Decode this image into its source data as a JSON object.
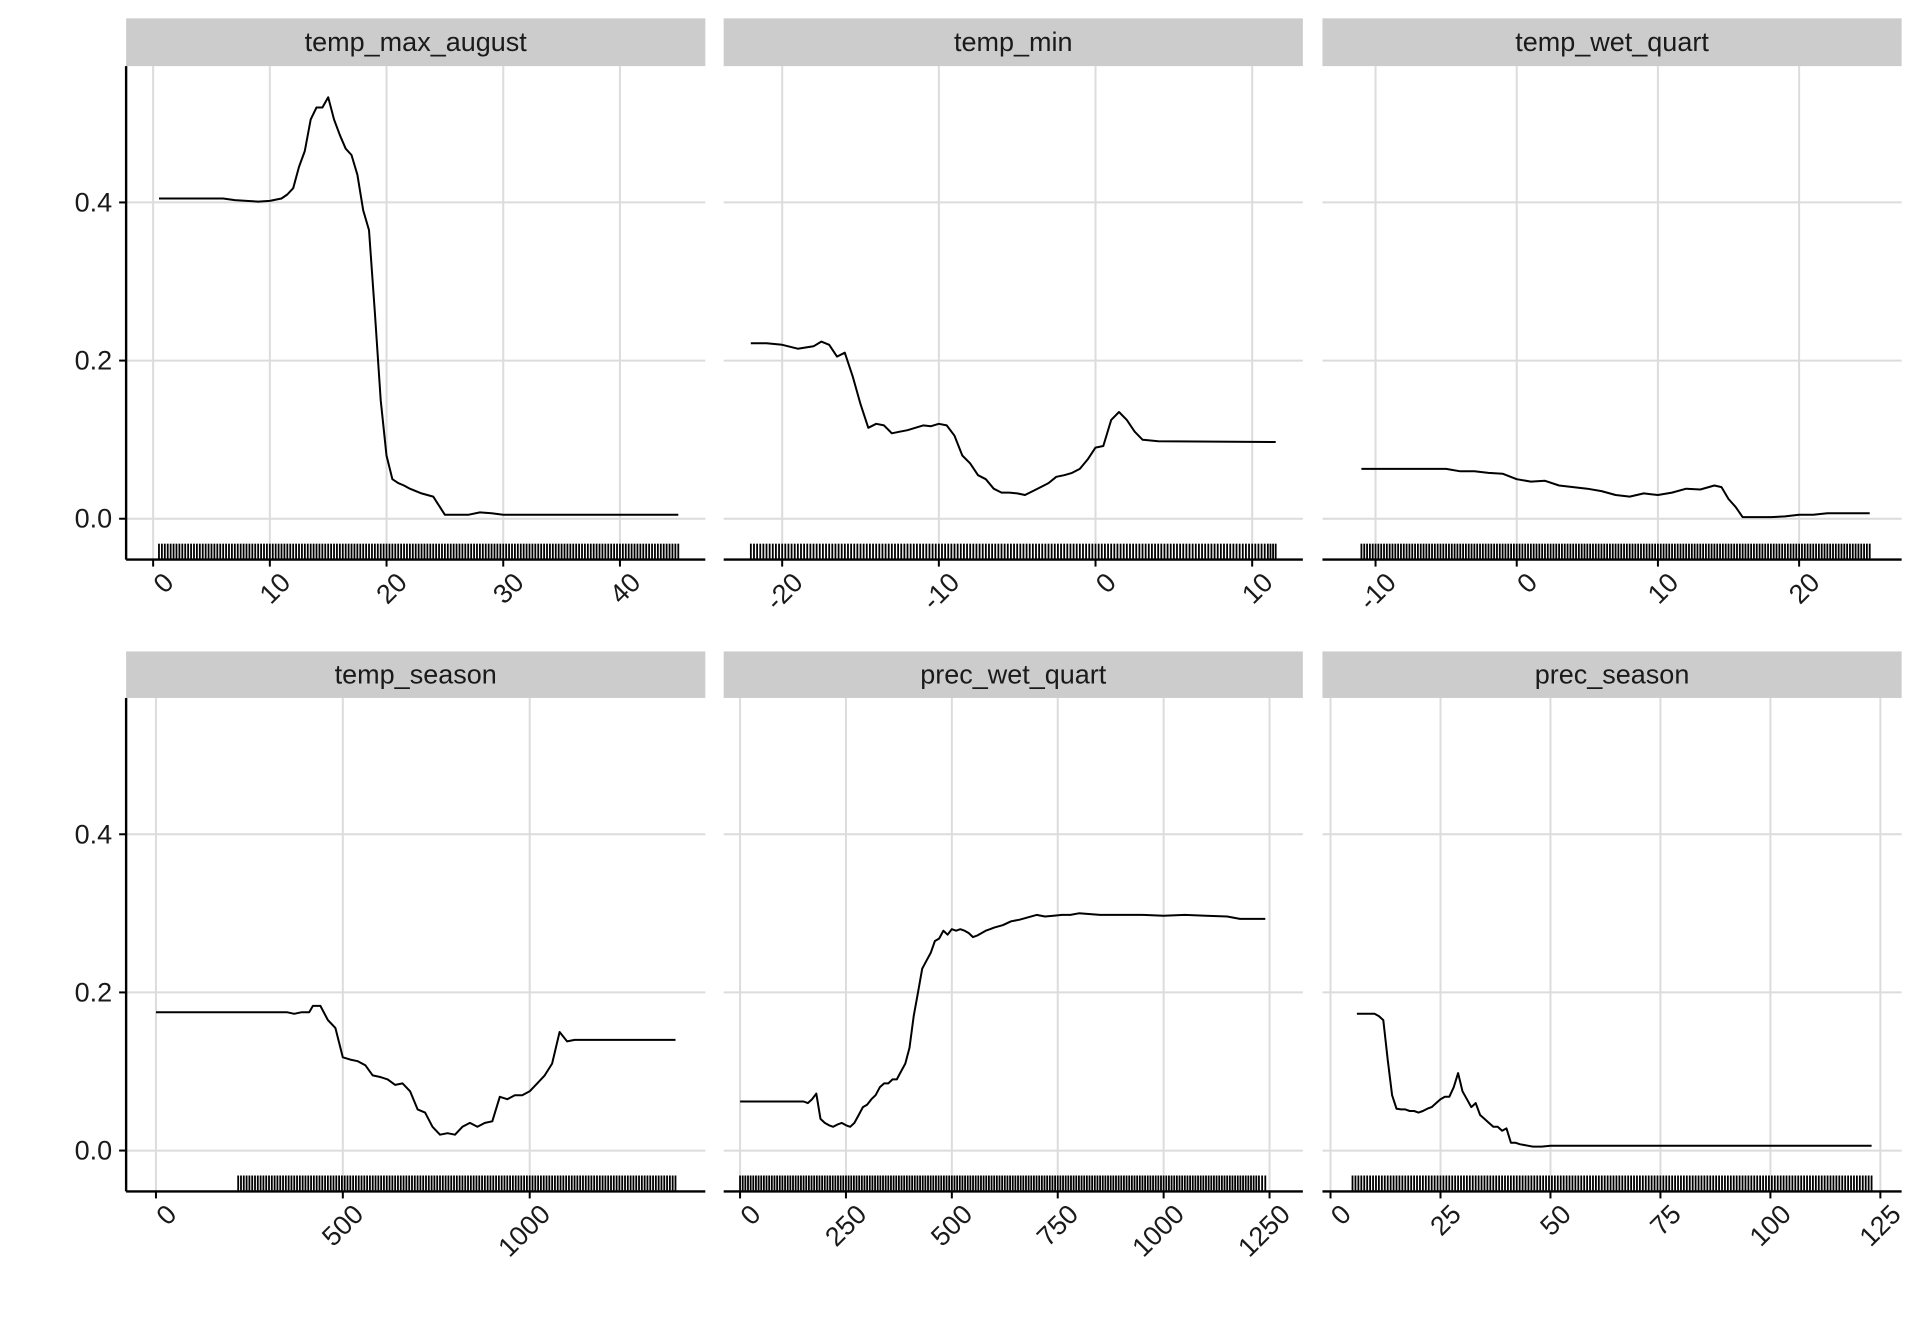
{
  "chart_data": [
    {
      "type": "line",
      "title": "temp_max_august",
      "xlim": [
        -2,
        47
      ],
      "ylim": [
        -0.03,
        0.56
      ],
      "xticks": [
        "0",
        "10",
        "20",
        "30",
        "40"
      ],
      "yticks": [
        "0.0",
        "0.2",
        "0.4"
      ],
      "x": [
        0.5,
        3,
        6,
        7,
        8,
        9,
        10,
        11,
        11.5,
        12,
        12.5,
        13,
        13.5,
        14,
        14.5,
        15,
        15.5,
        16,
        16.5,
        17,
        17.5,
        18,
        18.5,
        19,
        19.5,
        20,
        20.5,
        21,
        21.5,
        22,
        22.5,
        23,
        24,
        25,
        25.5,
        27,
        28,
        29,
        30,
        45
      ],
      "y": [
        0.405,
        0.405,
        0.405,
        0.403,
        0.402,
        0.401,
        0.402,
        0.405,
        0.41,
        0.418,
        0.445,
        0.465,
        0.505,
        0.52,
        0.52,
        0.533,
        0.505,
        0.485,
        0.468,
        0.46,
        0.435,
        0.39,
        0.365,
        0.26,
        0.15,
        0.08,
        0.05,
        0.045,
        0.042,
        0.038,
        0.035,
        0.032,
        0.028,
        0.005,
        0.005,
        0.005,
        0.008,
        0.007,
        0.005,
        0.005
      ],
      "rug": [
        0.5,
        3,
        4,
        6,
        7,
        8,
        9,
        10,
        11,
        12,
        13,
        14,
        15,
        16,
        17,
        18,
        19,
        20,
        21,
        22,
        23,
        24,
        25,
        26,
        27,
        28,
        29,
        30,
        31,
        32,
        33,
        34,
        35,
        36,
        37,
        38,
        39,
        40,
        41,
        42,
        43,
        44,
        45
      ]
    },
    {
      "type": "line",
      "title": "temp_min",
      "xlim": [
        -23.5,
        13
      ],
      "ylim": [
        -0.03,
        0.56
      ],
      "xticks": [
        "-20",
        "-10",
        "0",
        "10"
      ],
      "yticks": [
        "0.0",
        "0.2",
        "0.4"
      ],
      "x": [
        -22,
        -21,
        -20,
        -19,
        -18,
        -17.5,
        -17,
        -16.5,
        -16,
        -15.5,
        -15,
        -14.5,
        -14,
        -13.5,
        -13,
        -12.5,
        -12,
        -11.5,
        -11,
        -10.5,
        -10,
        -9.5,
        -9,
        -8.5,
        -8,
        -7.5,
        -7,
        -6.5,
        -6,
        -5.5,
        -5,
        -4.5,
        -4,
        -3.5,
        -3,
        -2.5,
        -2,
        -1.5,
        -1,
        -0.5,
        0,
        0.5,
        1,
        1.5,
        2,
        2.5,
        3,
        4,
        11.5
      ],
      "y": [
        0.222,
        0.222,
        0.22,
        0.215,
        0.218,
        0.224,
        0.22,
        0.205,
        0.21,
        0.18,
        0.145,
        0.115,
        0.12,
        0.118,
        0.108,
        0.11,
        0.112,
        0.115,
        0.118,
        0.117,
        0.12,
        0.118,
        0.105,
        0.08,
        0.07,
        0.055,
        0.05,
        0.038,
        0.033,
        0.033,
        0.032,
        0.03,
        0.035,
        0.04,
        0.045,
        0.053,
        0.055,
        0.058,
        0.063,
        0.075,
        0.09,
        0.092,
        0.125,
        0.135,
        0.125,
        0.11,
        0.1,
        0.098,
        0.097
      ],
      "rug": [
        -22,
        -21,
        -20,
        -19,
        -18,
        -17,
        -16,
        -15,
        -14,
        -13,
        -12,
        -11,
        -10,
        -9,
        -8,
        -7,
        -6,
        -5,
        -4,
        -3,
        -2,
        -1,
        0,
        1,
        2,
        3,
        4,
        5,
        6,
        7,
        8,
        9,
        10,
        11,
        11.5
      ]
    },
    {
      "type": "line",
      "title": "temp_wet_quart",
      "xlim": [
        -13.5,
        27
      ],
      "ylim": [
        -0.03,
        0.56
      ],
      "xticks": [
        "-10",
        "0",
        "10",
        "20"
      ],
      "yticks": [
        "0.0",
        "0.2",
        "0.4"
      ],
      "x": [
        -11,
        -5,
        -4,
        -3,
        -2,
        -1,
        0,
        1,
        2,
        3,
        4,
        5,
        6,
        7,
        8,
        9,
        10,
        11,
        12,
        13,
        14,
        14.5,
        15,
        15.5,
        16,
        17,
        18,
        19,
        20,
        21,
        22,
        25
      ],
      "y": [
        0.063,
        0.063,
        0.06,
        0.06,
        0.058,
        0.057,
        0.05,
        0.047,
        0.048,
        0.042,
        0.04,
        0.038,
        0.035,
        0.03,
        0.028,
        0.032,
        0.03,
        0.033,
        0.038,
        0.037,
        0.042,
        0.04,
        0.025,
        0.015,
        0.002,
        0.002,
        0.002,
        0.003,
        0.005,
        0.005,
        0.007,
        0.007
      ],
      "rug": [
        -11,
        -10,
        -9,
        -8,
        -7,
        -6,
        -5,
        -4,
        -3,
        -2,
        -1,
        0,
        1,
        2,
        3,
        4,
        5,
        6,
        7,
        8,
        9,
        10,
        11,
        12,
        13,
        14,
        15,
        16,
        17,
        18,
        19,
        20,
        21,
        22,
        23,
        24,
        25
      ]
    },
    {
      "type": "line",
      "title": "temp_season",
      "xlim": [
        -70,
        1460
      ],
      "ylim": [
        -0.03,
        0.56
      ],
      "xticks": [
        "0",
        "500",
        "1000"
      ],
      "yticks": [
        "0.0",
        "0.2",
        "0.4"
      ],
      "x": [
        0,
        350,
        370,
        390,
        410,
        420,
        440,
        460,
        480,
        500,
        520,
        540,
        560,
        580,
        600,
        620,
        640,
        660,
        680,
        700,
        720,
        740,
        760,
        780,
        800,
        820,
        840,
        860,
        880,
        900,
        920,
        940,
        960,
        980,
        1000,
        1020,
        1040,
        1060,
        1080,
        1100,
        1120,
        1390
      ],
      "y": [
        0.175,
        0.175,
        0.173,
        0.175,
        0.175,
        0.183,
        0.183,
        0.165,
        0.155,
        0.118,
        0.115,
        0.113,
        0.108,
        0.095,
        0.093,
        0.09,
        0.083,
        0.085,
        0.075,
        0.052,
        0.048,
        0.03,
        0.02,
        0.022,
        0.02,
        0.03,
        0.035,
        0.03,
        0.035,
        0.037,
        0.068,
        0.065,
        0.07,
        0.07,
        0.075,
        0.085,
        0.095,
        0.11,
        0.15,
        0.138,
        0.14,
        0.14
      ],
      "rug": [
        220,
        250,
        280,
        310,
        340,
        370,
        400,
        430,
        460,
        490,
        520,
        550,
        580,
        610,
        640,
        670,
        700,
        730,
        760,
        790,
        820,
        850,
        880,
        910,
        940,
        970,
        1000,
        1030,
        1060,
        1090,
        1120,
        1150,
        1180,
        1210,
        1240,
        1270,
        1300,
        1330,
        1360,
        1390
      ]
    },
    {
      "type": "line",
      "title": "prec_wet_quart",
      "xlim": [
        -30,
        1320
      ],
      "ylim": [
        -0.03,
        0.56
      ],
      "xticks": [
        "0",
        "250",
        "500",
        "750",
        "1000",
        "1250"
      ],
      "yticks": [
        "0.0",
        "0.2",
        "0.4"
      ],
      "x": [
        0,
        150,
        160,
        170,
        180,
        190,
        200,
        210,
        220,
        230,
        240,
        250,
        260,
        270,
        280,
        290,
        300,
        310,
        320,
        330,
        340,
        350,
        360,
        370,
        380,
        390,
        400,
        410,
        420,
        430,
        440,
        450,
        460,
        470,
        480,
        490,
        500,
        510,
        520,
        530,
        540,
        550,
        560,
        570,
        580,
        590,
        600,
        620,
        640,
        660,
        680,
        700,
        720,
        740,
        760,
        780,
        800,
        850,
        900,
        950,
        1000,
        1050,
        1100,
        1150,
        1180,
        1240
      ],
      "y": [
        0.062,
        0.062,
        0.06,
        0.065,
        0.072,
        0.04,
        0.035,
        0.032,
        0.03,
        0.033,
        0.035,
        0.032,
        0.03,
        0.035,
        0.045,
        0.055,
        0.058,
        0.065,
        0.07,
        0.08,
        0.085,
        0.085,
        0.09,
        0.09,
        0.1,
        0.11,
        0.13,
        0.17,
        0.2,
        0.23,
        0.24,
        0.25,
        0.265,
        0.268,
        0.278,
        0.273,
        0.28,
        0.278,
        0.28,
        0.278,
        0.275,
        0.27,
        0.272,
        0.275,
        0.278,
        0.28,
        0.282,
        0.285,
        0.29,
        0.292,
        0.295,
        0.298,
        0.296,
        0.297,
        0.298,
        0.298,
        0.3,
        0.298,
        0.298,
        0.298,
        0.297,
        0.298,
        0.297,
        0.296,
        0.293,
        0.293
      ],
      "rug": [
        0,
        25,
        50,
        75,
        100,
        125,
        150,
        175,
        200,
        225,
        250,
        275,
        300,
        325,
        350,
        375,
        400,
        425,
        450,
        475,
        500,
        525,
        550,
        575,
        600,
        625,
        650,
        675,
        700,
        725,
        750,
        775,
        800,
        825,
        850,
        875,
        900,
        925,
        950,
        975,
        1000,
        1025,
        1050,
        1075,
        1100,
        1125,
        1150,
        1175,
        1200,
        1225,
        1240
      ]
    },
    {
      "type": "line",
      "title": "prec_season",
      "xlim": [
        -1,
        129
      ],
      "ylim": [
        -0.03,
        0.56
      ],
      "xticks": [
        "0",
        "25",
        "50",
        "75",
        "100",
        "125"
      ],
      "yticks": [
        "0.0",
        "0.2",
        "0.4"
      ],
      "x": [
        6,
        10,
        11,
        12,
        13,
        14,
        15,
        16,
        17,
        18,
        19,
        20,
        21,
        22,
        23,
        24,
        25,
        26,
        27,
        28,
        29,
        30,
        31,
        32,
        33,
        34,
        35,
        36,
        37,
        38,
        39,
        40,
        41,
        42,
        43,
        44,
        45,
        46,
        47,
        48,
        50,
        60,
        123
      ],
      "y": [
        0.173,
        0.173,
        0.17,
        0.165,
        0.115,
        0.07,
        0.053,
        0.052,
        0.052,
        0.05,
        0.05,
        0.048,
        0.05,
        0.053,
        0.055,
        0.06,
        0.065,
        0.068,
        0.068,
        0.08,
        0.098,
        0.075,
        0.065,
        0.055,
        0.06,
        0.045,
        0.04,
        0.035,
        0.03,
        0.03,
        0.025,
        0.028,
        0.01,
        0.01,
        0.008,
        0.007,
        0.006,
        0.005,
        0.005,
        0.005,
        0.006,
        0.006,
        0.006
      ],
      "rug": [
        5,
        7,
        9,
        11,
        13,
        15,
        17,
        19,
        21,
        23,
        25,
        27,
        29,
        31,
        33,
        35,
        37,
        39,
        41,
        43,
        45,
        47,
        49,
        51,
        53,
        55,
        57,
        59,
        61,
        63,
        65,
        67,
        69,
        71,
        73,
        75,
        77,
        79,
        81,
        83,
        85,
        87,
        89,
        91,
        93,
        95,
        97,
        99,
        101,
        103,
        105,
        107,
        109,
        111,
        113,
        115,
        117,
        119,
        121,
        123
      ]
    }
  ]
}
